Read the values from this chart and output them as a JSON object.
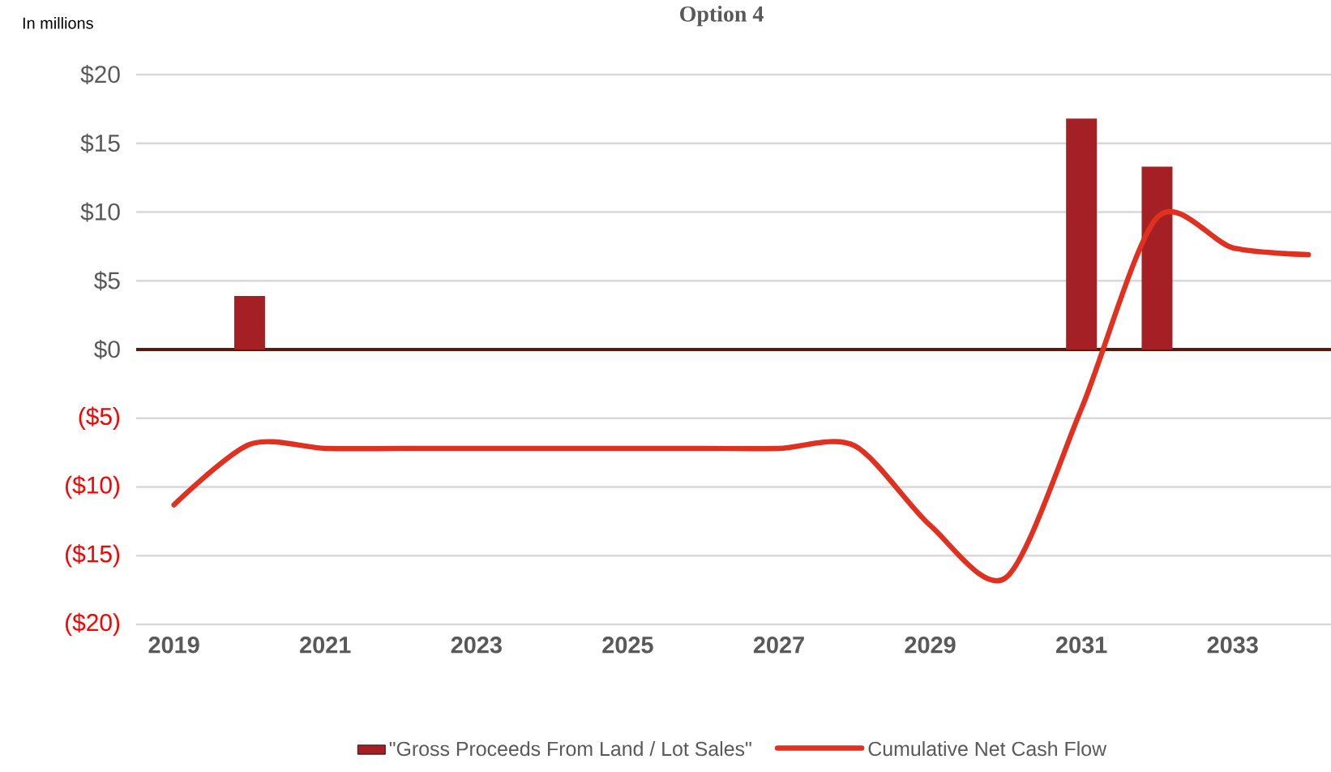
{
  "chart_data": {
    "type": "bar",
    "title": "Option 4",
    "annotations": [
      "In millions"
    ],
    "categories": [
      "2019",
      null,
      "2021",
      null,
      "2023",
      null,
      "2025",
      null,
      "2027",
      null,
      "2029",
      null,
      "2031",
      null,
      "2033",
      null
    ],
    "series": [
      {
        "name": "\"Gross Proceeds From Land / Lot Sales\"",
        "color": "#a52024",
        "values": [
          null,
          3.9,
          null,
          null,
          null,
          null,
          null,
          null,
          null,
          null,
          null,
          null,
          16.8,
          13.3,
          null,
          null
        ]
      },
      {
        "name": "Cumulative Net Cash Flow",
        "type": "line",
        "color": "#e03020",
        "values": [
          -11.3,
          -6.9,
          -7.2,
          -7.2,
          -7.2,
          -7.2,
          -7.2,
          -7.2,
          -7.2,
          -7.0,
          -12.8,
          -16.6,
          -4.3,
          9.6,
          7.4,
          6.9
        ]
      }
    ],
    "ylim": [
      -20,
      20
    ],
    "yticks": [
      {
        "value": -20,
        "label": "($20)"
      },
      {
        "value": -15,
        "label": "($15)"
      },
      {
        "value": -10,
        "label": "($10)"
      },
      {
        "value": -5,
        "label": "($5)"
      },
      {
        "value": 0,
        "label": "$0"
      },
      {
        "value": 5,
        "label": "$5"
      },
      {
        "value": 10,
        "label": "$10"
      },
      {
        "value": 15,
        "label": "$15"
      },
      {
        "value": 20,
        "label": "$20"
      }
    ],
    "grid": "y",
    "legend": "bottom",
    "marker": "none",
    "line_style": "solid"
  }
}
